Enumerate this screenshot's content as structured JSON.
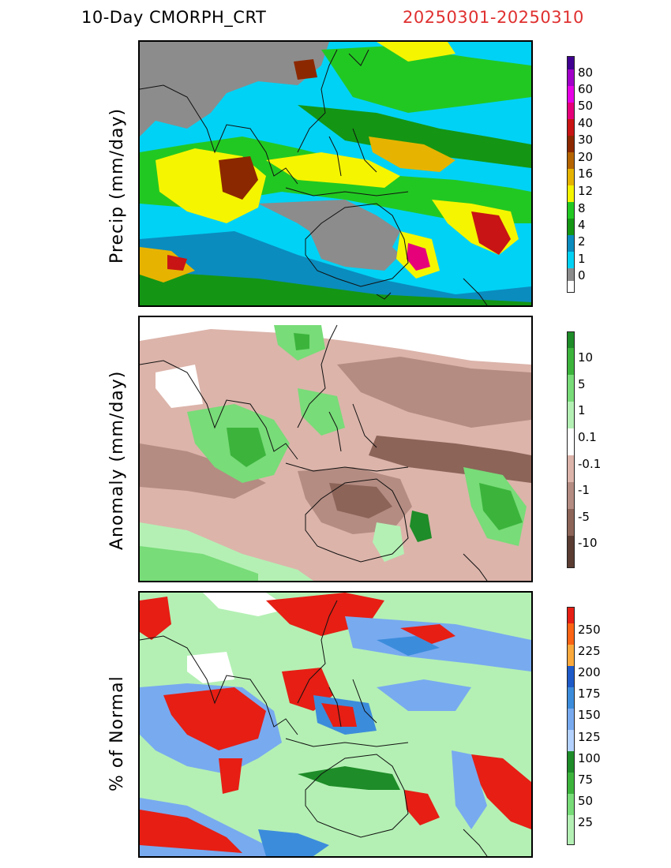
{
  "header": {
    "title": "10-Day CMORPH_CRT",
    "date_range": "20250301-20250310",
    "date_color": "#e03030"
  },
  "panels": [
    {
      "id": "precip",
      "ylabel": "Precip (mm/day)",
      "legend_labels": [
        "80",
        "60",
        "50",
        "40",
        "30",
        "20",
        "16",
        "12",
        "8",
        "4",
        "2",
        "1",
        "0"
      ],
      "legend_colors": [
        "#400090",
        "#a000c8",
        "#e600e6",
        "#e6007a",
        "#c81414",
        "#8c2800",
        "#b46400",
        "#e6b400",
        "#f5f500",
        "#22c822",
        "#149614",
        "#0a8cbe",
        "#00d2f5",
        "#8c8c8c"
      ]
    },
    {
      "id": "anomaly",
      "ylabel": "Anomaly (mm/day)",
      "legend_labels": [
        "10",
        "5",
        "1",
        "0.1",
        "-0.1",
        "-1",
        "-5",
        "-10"
      ],
      "legend_colors": [
        "#1e8c28",
        "#3cb43c",
        "#78dc78",
        "#b4f0b4",
        "#ffffff",
        "#dcb4aa",
        "#b48c82",
        "#8c6458",
        "#5a3c32"
      ]
    },
    {
      "id": "percent",
      "ylabel": "% of Normal",
      "legend_labels": [
        "250",
        "225",
        "200",
        "175",
        "150",
        "125",
        "100",
        "75",
        "50",
        "25"
      ],
      "legend_colors": [
        "#e61e14",
        "#fa6414",
        "#faaa3c",
        "#1e5ac8",
        "#3c8cdc",
        "#78aaf0",
        "#b4d2ff",
        "#1e8c28",
        "#3cb43c",
        "#78dc78",
        "#b4f0b4"
      ]
    }
  ]
}
